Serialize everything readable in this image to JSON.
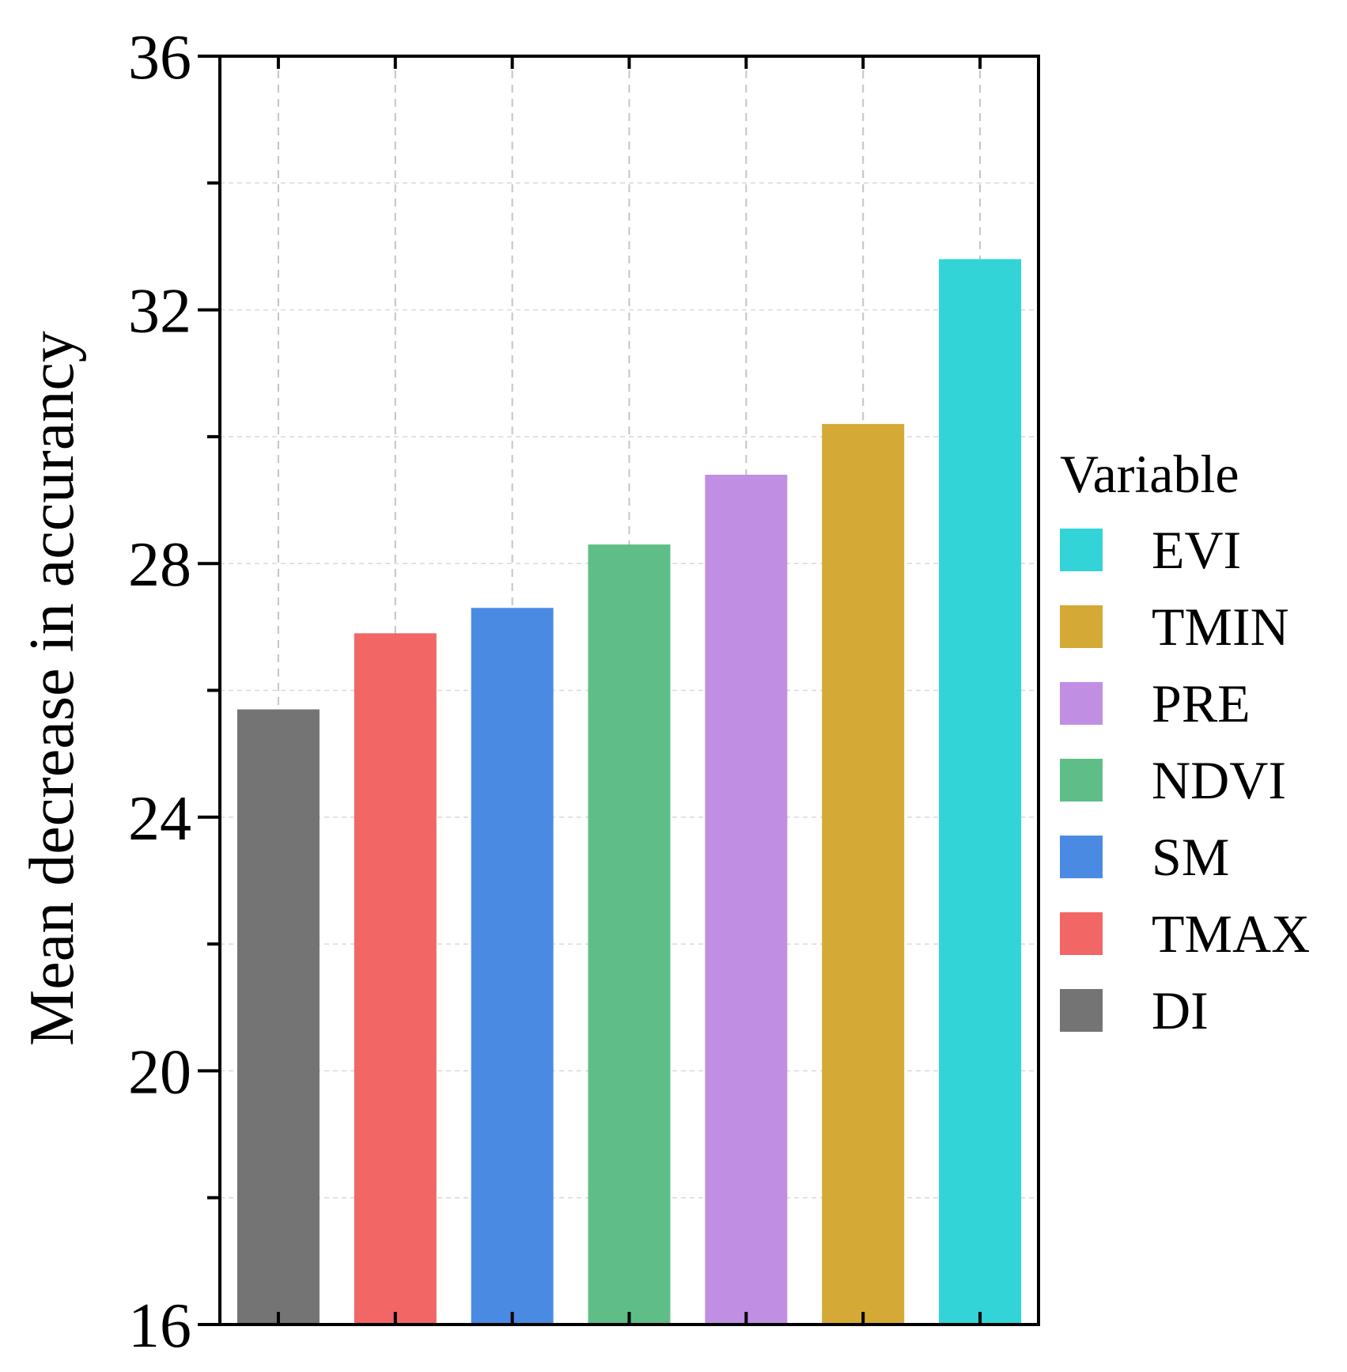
{
  "chart_data": {
    "type": "bar",
    "title": "",
    "xlabel": "",
    "ylabel": "Mean decrease in accurancy",
    "ylim": [
      16,
      36
    ],
    "yticks": [
      16,
      20,
      24,
      28,
      32,
      36
    ],
    "yminor": [
      18,
      22,
      26,
      30,
      34
    ],
    "grid": true,
    "categories": [
      "DI",
      "TMAX",
      "SM",
      "NDVI",
      "PRE",
      "TMIN",
      "EVI"
    ],
    "values": [
      25.7,
      26.9,
      27.3,
      28.3,
      29.4,
      30.2,
      32.8
    ],
    "colors": [
      "#747474",
      "#f26666",
      "#4a8ae3",
      "#5fbe88",
      "#c08fe4",
      "#d4a935",
      "#33d4d7"
    ],
    "legend": {
      "title": "Variable",
      "position": "right",
      "entries": [
        {
          "label": "EVI",
          "color": "#33d4d7"
        },
        {
          "label": "TMIN",
          "color": "#d4a935"
        },
        {
          "label": "PRE",
          "color": "#c08fe4"
        },
        {
          "label": "NDVI",
          "color": "#5fbe88"
        },
        {
          "label": "SM",
          "color": "#4a8ae3"
        },
        {
          "label": "TMAX",
          "color": "#f26666"
        },
        {
          "label": "DI",
          "color": "#747474"
        }
      ]
    }
  }
}
